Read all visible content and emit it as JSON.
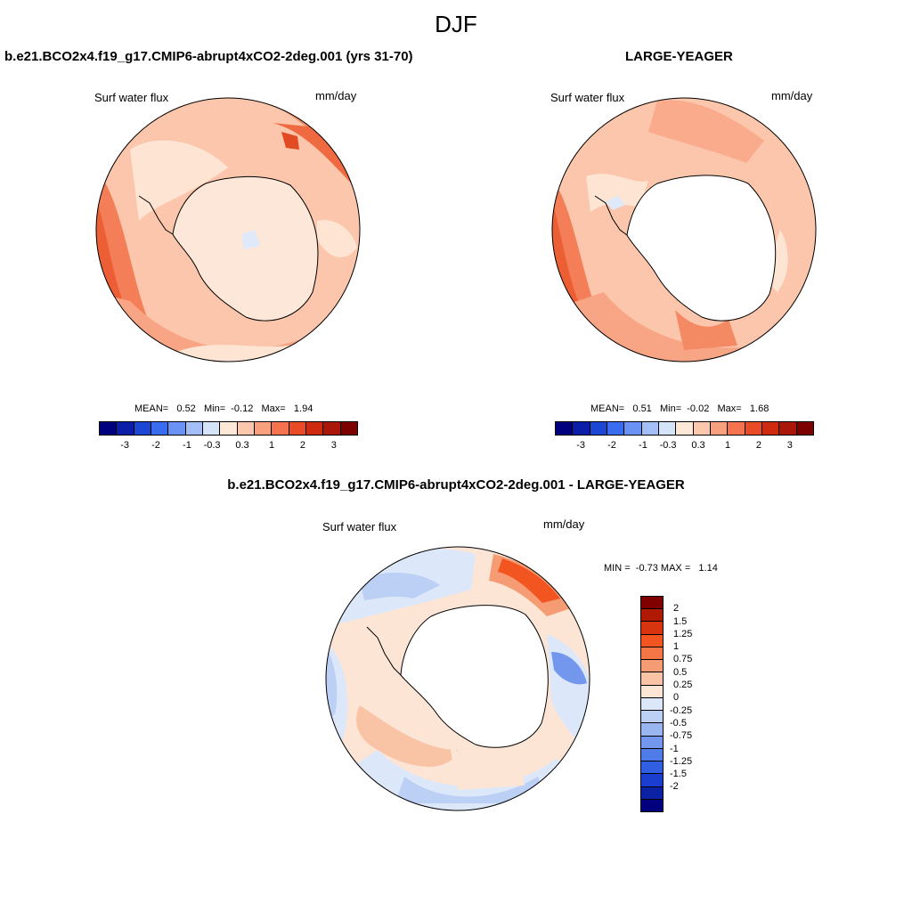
{
  "page_title": "DJF",
  "panels": [
    {
      "title": "b.e21.BCO2x4.f19_g17.CMIP6-abrupt4xCO2-2deg.001 (yrs 31-70)",
      "variable": "Surf water flux",
      "units": "mm/day",
      "stats": {
        "mean_label": "MEAN=",
        "mean": "0.52",
        "min_label": "Min=",
        "min": "-0.12",
        "max_label": "Max=",
        "max": "1.94"
      }
    },
    {
      "title": "LARGE-YEAGER",
      "variable": "Surf water flux",
      "units": "mm/day",
      "stats": {
        "mean_label": "MEAN=",
        "mean": "0.51",
        "min_label": "Min=",
        "min": "-0.02",
        "max_label": "Max=",
        "max": "1.68"
      }
    }
  ],
  "diff_panel": {
    "title": "b.e21.BCO2x4.f19_g17.CMIP6-abrupt4xCO2-2deg.001 - LARGE-YEAGER",
    "variable": "Surf water flux",
    "units": "mm/day",
    "minmax": {
      "min_label": "MIN =",
      "min": "-0.73",
      "max_label": "MAX =",
      "max": "1.14"
    }
  },
  "colorbar_top": {
    "colors": [
      "#00007f",
      "#0a1ea8",
      "#1c46d4",
      "#3a6cf0",
      "#6a92f5",
      "#a4bff7",
      "#d6e4fa",
      "#fde8d8",
      "#fcc7ac",
      "#f9a07f",
      "#f5744f",
      "#ea4a25",
      "#cd2a10",
      "#a81707",
      "#7d0000"
    ],
    "tick_labels": [
      "-3",
      "-2",
      "-1",
      "-0.3",
      "0.3",
      "1",
      "2",
      "3"
    ]
  },
  "colorbar_diff": {
    "colors": [
      "#800000",
      "#b01a05",
      "#d83410",
      "#f25520",
      "#f47646",
      "#f69c74",
      "#f9c3a6",
      "#fde5d6",
      "#dce8fa",
      "#bcd0f6",
      "#99b6f1",
      "#7297ed",
      "#4f7ce9",
      "#305fe2",
      "#1a3fd0",
      "#0b22a5",
      "#00007f"
    ],
    "tick_labels": [
      "2",
      "1.5",
      "1.25",
      "1",
      "0.75",
      "0.5",
      "0.25",
      "0",
      "-0.25",
      "-0.5",
      "-0.75",
      "-1",
      "-1.25",
      "-1.5",
      "-2"
    ]
  }
}
